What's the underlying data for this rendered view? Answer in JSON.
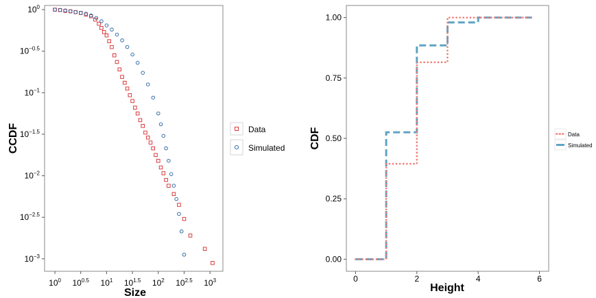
{
  "chart_data": [
    {
      "type": "scatter",
      "xlabel": "Size",
      "ylabel": "CCDF",
      "x_scale": "log10",
      "y_scale": "log10",
      "xlim_log10": [
        -0.2,
        3.25
      ],
      "ylim_log10": [
        -3.15,
        0.05
      ],
      "x_ticks": [
        {
          "base": "10",
          "exp": "0"
        },
        {
          "base": "10",
          "exp": "0.5"
        },
        {
          "base": "10",
          "exp": "1"
        },
        {
          "base": "10",
          "exp": "1.5"
        },
        {
          "base": "10",
          "exp": "2"
        },
        {
          "base": "10",
          "exp": "2.5"
        },
        {
          "base": "10",
          "exp": "3"
        }
      ],
      "y_ticks": [
        {
          "base": "10",
          "exp": "0"
        },
        {
          "base": "10",
          "exp": "−0.5"
        },
        {
          "base": "10",
          "exp": "−1"
        },
        {
          "base": "10",
          "exp": "−1.5"
        },
        {
          "base": "10",
          "exp": "−2"
        },
        {
          "base": "10",
          "exp": "−2.5"
        },
        {
          "base": "10",
          "exp": "−3"
        }
      ],
      "legend": {
        "position": "right",
        "entries": [
          "Data",
          "Simulated"
        ]
      },
      "grid": false,
      "series": [
        {
          "name": "Data",
          "marker": "square",
          "color": "#d62728",
          "points_log10": [
            [
              0.0,
              0.0
            ],
            [
              0.1,
              -0.005
            ],
            [
              0.2,
              -0.015
            ],
            [
              0.3,
              -0.02
            ],
            [
              0.4,
              -0.03
            ],
            [
              0.5,
              -0.04
            ],
            [
              0.6,
              -0.06
            ],
            [
              0.7,
              -0.08
            ],
            [
              0.78,
              -0.12
            ],
            [
              0.85,
              -0.17
            ],
            [
              0.9,
              -0.22
            ],
            [
              0.95,
              -0.27
            ],
            [
              1.0,
              -0.31
            ],
            [
              1.05,
              -0.38
            ],
            [
              1.1,
              -0.45
            ],
            [
              1.15,
              -0.55
            ],
            [
              1.2,
              -0.63
            ],
            [
              1.25,
              -0.72
            ],
            [
              1.3,
              -0.81
            ],
            [
              1.35,
              -0.88
            ],
            [
              1.4,
              -0.95
            ],
            [
              1.45,
              -1.03
            ],
            [
              1.5,
              -1.1
            ],
            [
              1.55,
              -1.18
            ],
            [
              1.6,
              -1.25
            ],
            [
              1.65,
              -1.33
            ],
            [
              1.7,
              -1.4
            ],
            [
              1.75,
              -1.48
            ],
            [
              1.8,
              -1.54
            ],
            [
              1.85,
              -1.6
            ],
            [
              1.9,
              -1.67
            ],
            [
              1.95,
              -1.75
            ],
            [
              2.0,
              -1.82
            ],
            [
              2.05,
              -1.9
            ],
            [
              2.1,
              -1.97
            ],
            [
              2.15,
              -2.05
            ],
            [
              2.2,
              -2.12
            ],
            [
              2.3,
              -2.22
            ],
            [
              2.4,
              -2.35
            ],
            [
              2.5,
              -2.52
            ],
            [
              2.62,
              -2.72
            ],
            [
              2.9,
              -2.88
            ],
            [
              3.05,
              -3.05
            ]
          ]
        },
        {
          "name": "Simulated",
          "marker": "circle",
          "color": "#1f5f9e",
          "points_log10": [
            [
              0.0,
              0.0
            ],
            [
              0.1,
              -0.005
            ],
            [
              0.2,
              -0.01
            ],
            [
              0.3,
              -0.02
            ],
            [
              0.4,
              -0.03
            ],
            [
              0.5,
              -0.04
            ],
            [
              0.6,
              -0.05
            ],
            [
              0.7,
              -0.07
            ],
            [
              0.8,
              -0.1
            ],
            [
              0.9,
              -0.14
            ],
            [
              1.0,
              -0.19
            ],
            [
              1.1,
              -0.24
            ],
            [
              1.2,
              -0.3
            ],
            [
              1.3,
              -0.37
            ],
            [
              1.4,
              -0.45
            ],
            [
              1.5,
              -0.54
            ],
            [
              1.6,
              -0.64
            ],
            [
              1.7,
              -0.76
            ],
            [
              1.8,
              -0.9
            ],
            [
              1.9,
              -1.06
            ],
            [
              2.0,
              -1.25
            ],
            [
              2.05,
              -1.38
            ],
            [
              2.1,
              -1.52
            ],
            [
              2.15,
              -1.67
            ],
            [
              2.2,
              -1.82
            ],
            [
              2.25,
              -1.98
            ],
            [
              2.3,
              -2.12
            ],
            [
              2.35,
              -2.28
            ],
            [
              2.4,
              -2.46
            ],
            [
              2.45,
              -2.67
            ],
            [
              2.5,
              -2.95
            ]
          ]
        }
      ]
    },
    {
      "type": "line",
      "xlabel": "Height",
      "ylabel": "CDF",
      "xlim": [
        -0.3,
        6.3
      ],
      "ylim": [
        -0.05,
        1.05
      ],
      "x_ticks": [
        "0",
        "2",
        "4",
        "6"
      ],
      "y_ticks": [
        "0.00",
        "0.25",
        "0.50",
        "0.75",
        "1.00"
      ],
      "legend": {
        "position": "right",
        "entries": [
          "Data",
          "Simulated"
        ]
      },
      "grid": false,
      "series": [
        {
          "name": "Data",
          "style": "dotted",
          "color": "#f07b74",
          "steps": [
            [
              0,
              0.0
            ],
            [
              1,
              0.395
            ],
            [
              2,
              0.815
            ],
            [
              3,
              1.0
            ],
            [
              5.8,
              1.0
            ]
          ]
        },
        {
          "name": "Simulated",
          "style": "dashed",
          "color": "#5fa3c4",
          "steps": [
            [
              0,
              0.0
            ],
            [
              1,
              0.525
            ],
            [
              2,
              0.885
            ],
            [
              3,
              0.98
            ],
            [
              4,
              1.0
            ],
            [
              5.8,
              1.0
            ]
          ]
        }
      ]
    }
  ]
}
